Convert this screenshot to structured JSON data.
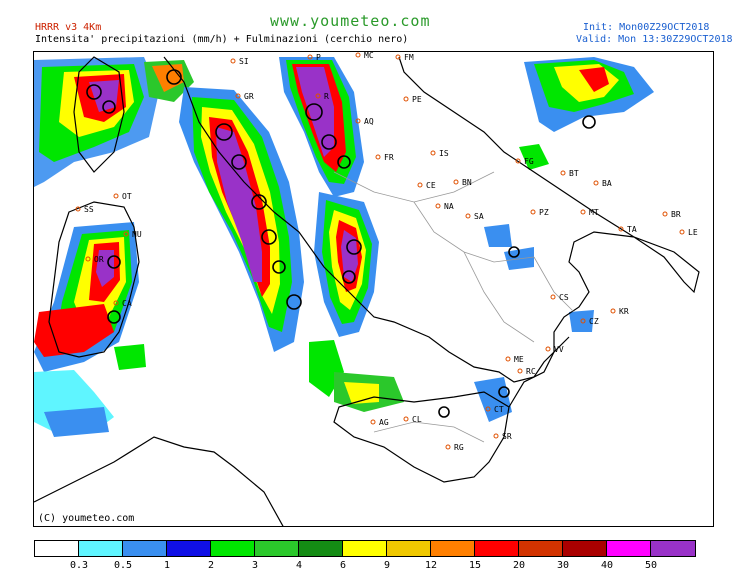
{
  "header": {
    "model": "HRRR v3 4Km",
    "subtitle": "Intensita' precipitazioni (mm/h) + Fulminazioni (cerchio nero)",
    "site": "www.youmeteo.com",
    "init": "Init: Mon00Z29OCT2018",
    "valid": "Valid: Mon 13:30Z29OCT2018"
  },
  "copyright": "(C) youmeteo.com",
  "legend": {
    "colors": [
      "#ffffff",
      "#5ff5ff",
      "#3a8ff0",
      "#1010e6",
      "#00e600",
      "#2bc82b",
      "#148c14",
      "#ffff00",
      "#f0c800",
      "#ff7f00",
      "#ff0000",
      "#d23300",
      "#aa0000",
      "#ff00ff",
      "#9932c8"
    ],
    "ticks": [
      "0.3",
      "0.5",
      "1",
      "2",
      "3",
      "4",
      "6",
      "9",
      "12",
      "15",
      "20",
      "30",
      "40",
      "50"
    ]
  },
  "cities": [
    {
      "label": "SI"
    },
    {
      "label": "GR"
    },
    {
      "label": "MC"
    },
    {
      "label": "FM"
    },
    {
      "label": "PE"
    },
    {
      "label": "AQ"
    },
    {
      "label": "FR"
    },
    {
      "label": "IS"
    },
    {
      "label": "FG"
    },
    {
      "label": "BT"
    },
    {
      "label": "BA"
    },
    {
      "label": "CE"
    },
    {
      "label": "BN"
    },
    {
      "label": "NA"
    },
    {
      "label": "SA"
    },
    {
      "label": "PZ"
    },
    {
      "label": "MT"
    },
    {
      "label": "TA"
    },
    {
      "label": "BR"
    },
    {
      "label": "LE"
    },
    {
      "label": "OT"
    },
    {
      "label": "SS"
    },
    {
      "label": "NU"
    },
    {
      "label": "OR"
    },
    {
      "label": "CA"
    },
    {
      "label": "CS"
    },
    {
      "label": "KR"
    },
    {
      "label": "CZ"
    },
    {
      "label": "VV"
    },
    {
      "label": "ME"
    },
    {
      "label": "RC"
    },
    {
      "label": "CT"
    },
    {
      "label": "SR"
    },
    {
      "label": "RG"
    },
    {
      "label": "CL"
    },
    {
      "label": "AG"
    },
    {
      "label": "R"
    },
    {
      "label": "P"
    }
  ]
}
